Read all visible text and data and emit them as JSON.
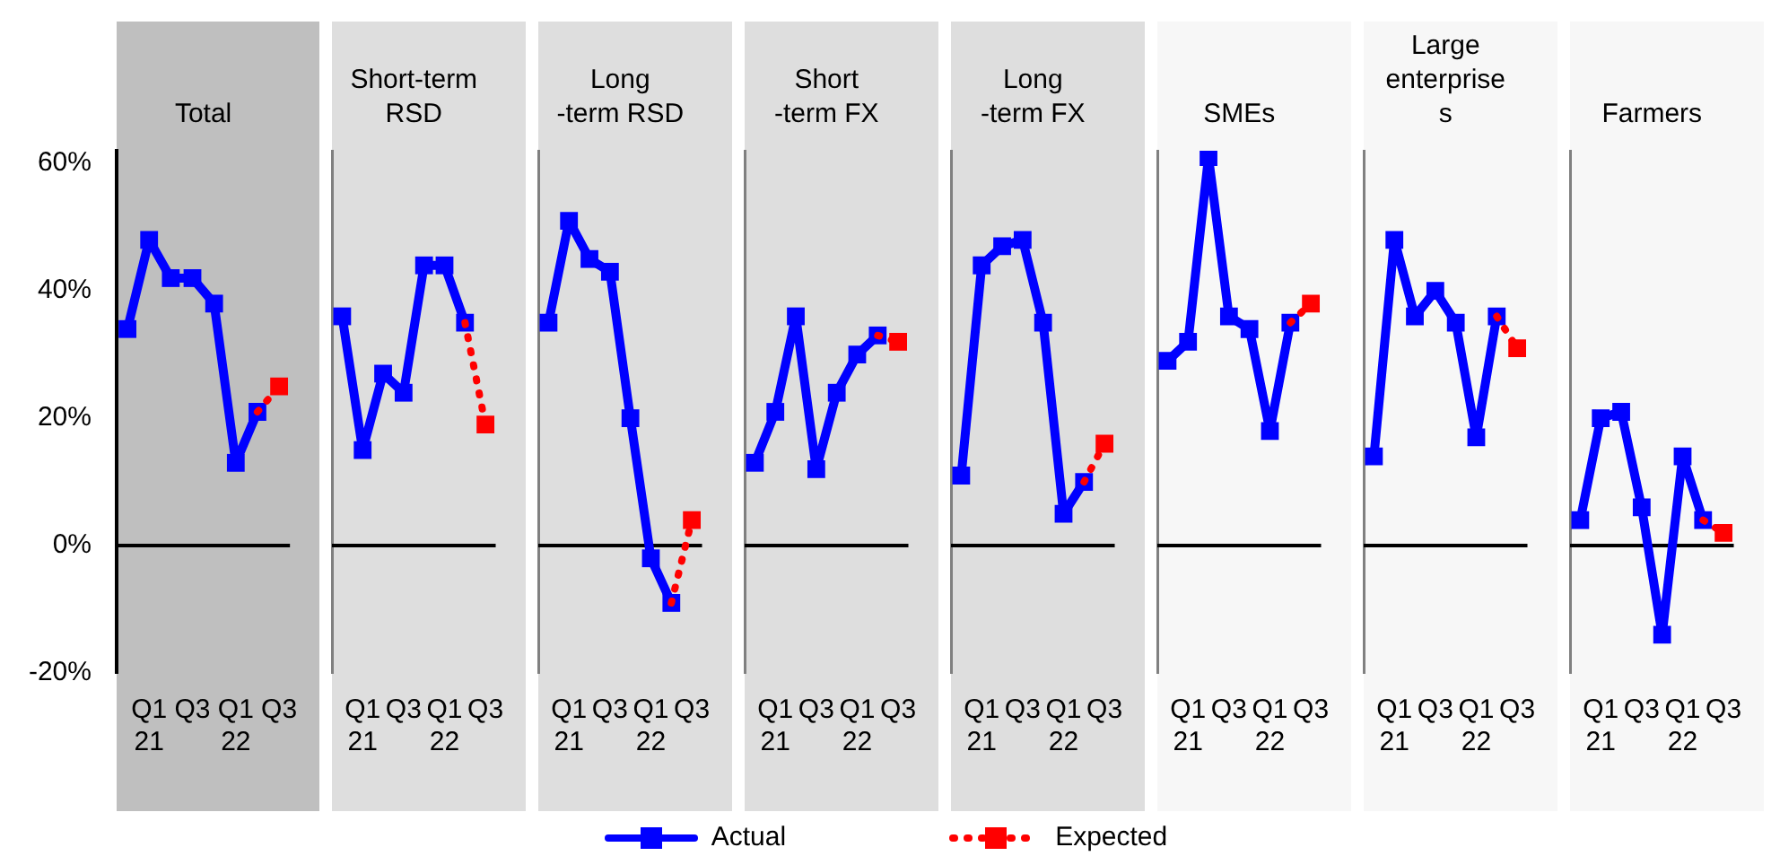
{
  "chart_data": [
    {
      "type": "line",
      "title": "Total",
      "categories": [
        null,
        "Q1 21",
        null,
        "Q3",
        null,
        "Q1 22",
        null,
        "Q3"
      ],
      "ylim": [
        -20,
        62
      ],
      "yticks": [
        {
          "value": -20,
          "label": "-20%"
        },
        {
          "value": 0,
          "label": "0%"
        },
        {
          "value": 20,
          "label": "20%"
        },
        {
          "value": 40,
          "label": "40%"
        },
        {
          "value": 60,
          "label": "60%"
        }
      ],
      "marker": "square",
      "legend": "bottom",
      "ref_lines": [
        {
          "axis": "y",
          "value": 0,
          "color": "#000000"
        }
      ],
      "series": [
        {
          "name": "Actual",
          "color": "#0000ff",
          "values": [
            34,
            48,
            42,
            42,
            38,
            13,
            21,
            null
          ]
        },
        {
          "name": "Expected",
          "color": "#ff0000",
          "line_style": "dotted",
          "values": [
            null,
            null,
            null,
            null,
            null,
            null,
            21,
            25
          ]
        }
      ]
    },
    {
      "type": "line",
      "title": "Short-term RSD",
      "categories": [
        null,
        "Q1 21",
        null,
        "Q3",
        null,
        "Q1 22",
        null,
        "Q3"
      ],
      "ylim": [
        -20,
        62
      ],
      "tick_labels": "x",
      "marker": "square",
      "ref_lines": [
        {
          "axis": "y",
          "value": 0,
          "color": "#000000"
        }
      ],
      "series": [
        {
          "color": "#0000ff",
          "values": [
            36,
            15,
            27,
            24,
            44,
            44,
            35,
            null
          ]
        },
        {
          "color": "#ff0000",
          "line_style": "dotted",
          "values": [
            null,
            null,
            null,
            null,
            null,
            null,
            35,
            19
          ]
        }
      ]
    },
    {
      "type": "line",
      "title": "Long -term RSD",
      "categories": [
        null,
        "Q1 21",
        null,
        "Q3",
        null,
        "Q1 22",
        null,
        "Q3"
      ],
      "ylim": [
        -20,
        62
      ],
      "tick_labels": "x",
      "marker": "square",
      "ref_lines": [
        {
          "axis": "y",
          "value": 0,
          "color": "#000000"
        }
      ],
      "series": [
        {
          "color": "#0000ff",
          "values": [
            35,
            51,
            45,
            43,
            20,
            -2,
            -9,
            null
          ]
        },
        {
          "color": "#ff0000",
          "line_style": "dotted",
          "values": [
            null,
            null,
            null,
            null,
            null,
            null,
            -9,
            4
          ]
        }
      ]
    },
    {
      "type": "line",
      "title": "Short -term FX",
      "categories": [
        null,
        "Q1 21",
        null,
        "Q3",
        null,
        "Q1 22",
        null,
        "Q3"
      ],
      "ylim": [
        -20,
        62
      ],
      "tick_labels": "x",
      "marker": "square",
      "ref_lines": [
        {
          "axis": "y",
          "value": 0,
          "color": "#000000"
        }
      ],
      "series": [
        {
          "color": "#0000ff",
          "values": [
            13,
            21,
            36,
            12,
            24,
            30,
            33,
            null
          ]
        },
        {
          "color": "#ff0000",
          "line_style": "dotted",
          "values": [
            null,
            null,
            null,
            null,
            null,
            null,
            33,
            32
          ]
        }
      ]
    },
    {
      "type": "line",
      "title": "Long -term FX",
      "categories": [
        null,
        "Q1 21",
        null,
        "Q3",
        null,
        "Q1 22",
        null,
        "Q3"
      ],
      "ylim": [
        -20,
        62
      ],
      "tick_labels": "x",
      "marker": "square",
      "ref_lines": [
        {
          "axis": "y",
          "value": 0,
          "color": "#000000"
        }
      ],
      "series": [
        {
          "color": "#0000ff",
          "values": [
            11,
            44,
            47,
            48,
            35,
            5,
            10,
            null
          ]
        },
        {
          "color": "#ff0000",
          "line_style": "dotted",
          "values": [
            null,
            null,
            null,
            null,
            null,
            null,
            10,
            16
          ]
        }
      ]
    },
    {
      "type": "line",
      "title": "SMEs",
      "categories": [
        null,
        "Q1 21",
        null,
        "Q3",
        null,
        "Q1 22",
        null,
        "Q3"
      ],
      "ylim": [
        -20,
        62
      ],
      "tick_labels": "x",
      "marker": "square",
      "ref_lines": [
        {
          "axis": "y",
          "value": 0,
          "color": "#000000"
        }
      ],
      "series": [
        {
          "color": "#0000ff",
          "values": [
            29,
            32,
            61,
            36,
            34,
            18,
            35,
            null
          ]
        },
        {
          "color": "#ff0000",
          "line_style": "dotted",
          "values": [
            null,
            null,
            null,
            null,
            null,
            null,
            35,
            38
          ]
        }
      ]
    },
    {
      "type": "line",
      "title": "Large enterprises",
      "categories": [
        null,
        "Q1 21",
        null,
        "Q3",
        null,
        "Q1 22",
        null,
        "Q3"
      ],
      "ylim": [
        -20,
        62
      ],
      "tick_labels": "x",
      "marker": "square",
      "ref_lines": [
        {
          "axis": "y",
          "value": 0,
          "color": "#000000"
        }
      ],
      "series": [
        {
          "color": "#0000ff",
          "values": [
            14,
            48,
            36,
            40,
            35,
            17,
            36,
            null
          ]
        },
        {
          "color": "#ff0000",
          "line_style": "dotted",
          "values": [
            null,
            null,
            null,
            null,
            null,
            null,
            36,
            31
          ]
        }
      ]
    },
    {
      "type": "line",
      "title": "Farmers",
      "categories": [
        null,
        "Q1 21",
        null,
        "Q3",
        null,
        "Q1 22",
        null,
        "Q3"
      ],
      "ylim": [
        -20,
        62
      ],
      "tick_labels": "x",
      "marker": "square",
      "ref_lines": [
        {
          "axis": "y",
          "value": 0,
          "color": "#000000"
        }
      ],
      "series": [
        {
          "color": "#0000ff",
          "values": [
            4,
            20,
            21,
            6,
            -14,
            14,
            4,
            null
          ]
        },
        {
          "color": "#ff0000",
          "line_style": "dotted",
          "values": [
            null,
            null,
            null,
            null,
            null,
            null,
            4,
            2
          ]
        }
      ]
    }
  ]
}
